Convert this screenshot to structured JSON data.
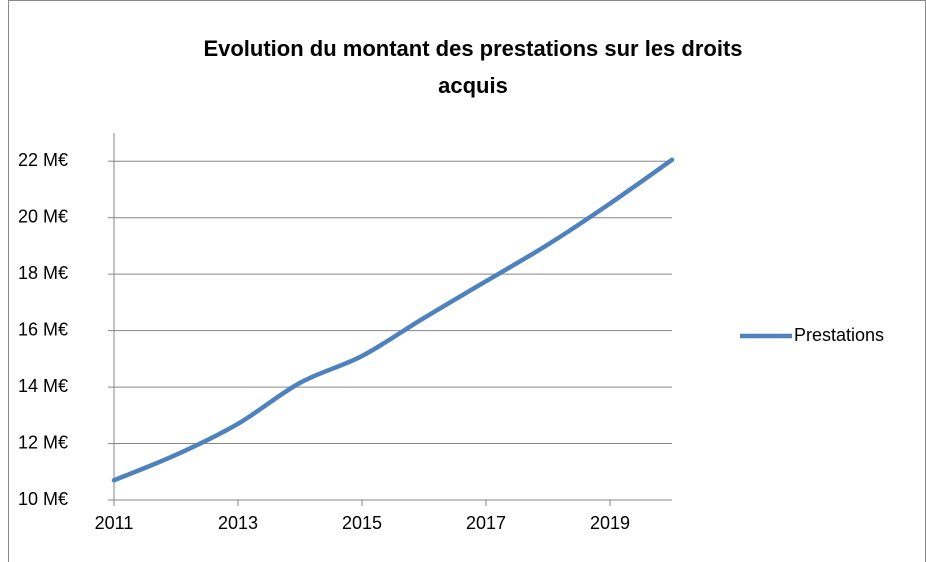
{
  "chart_data": {
    "type": "line",
    "title": "Evolution du montant des prestations sur les droits acquis",
    "x": [
      2011,
      2012,
      2013,
      2014,
      2015,
      2016,
      2017,
      2018,
      2019,
      2020
    ],
    "series": [
      {
        "name": "Prestations",
        "color": "#4f81bd",
        "values": [
          10.7,
          11.6,
          12.7,
          14.15,
          15.1,
          16.45,
          17.75,
          19.05,
          20.5,
          22.05
        ]
      }
    ],
    "xlim": [
      2011,
      2020
    ],
    "xticks": [
      2011,
      2013,
      2015,
      2017,
      2019
    ],
    "ylim": [
      10,
      23
    ],
    "yticks": [
      {
        "value": 10,
        "label": "10 M€"
      },
      {
        "value": 12,
        "label": "12 M€"
      },
      {
        "value": 14,
        "label": "14 M€"
      },
      {
        "value": 16,
        "label": "16 M€"
      },
      {
        "value": 18,
        "label": "18 M€"
      },
      {
        "value": 20,
        "label": "20 M€"
      },
      {
        "value": 22,
        "label": "22 M€"
      }
    ],
    "grid": true,
    "legend": "right"
  }
}
